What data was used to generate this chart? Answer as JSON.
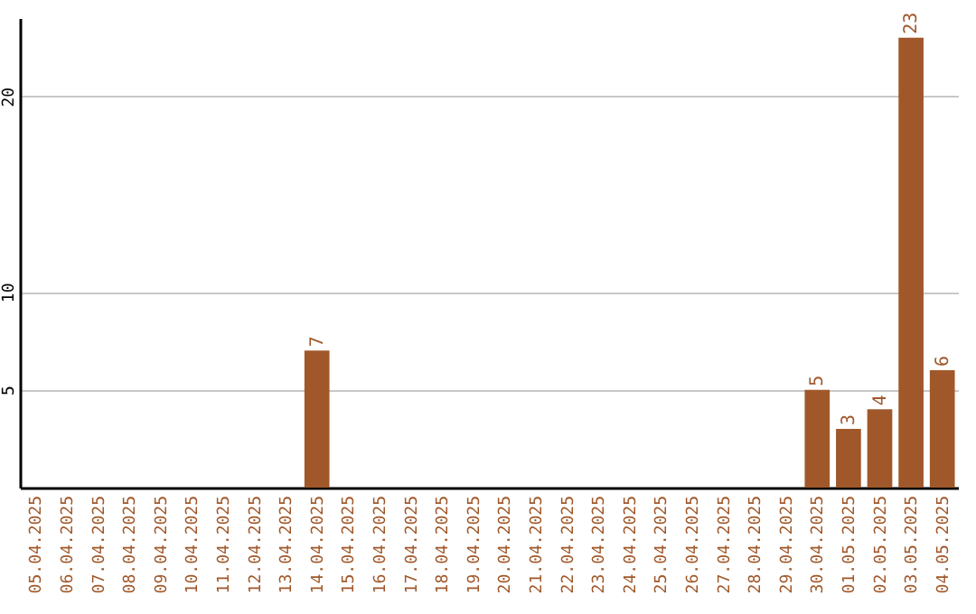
{
  "chart_data": {
    "type": "bar",
    "categories": [
      "05.04.2025",
      "06.04.2025",
      "07.04.2025",
      "08.04.2025",
      "09.04.2025",
      "10.04.2025",
      "11.04.2025",
      "12.04.2025",
      "13.04.2025",
      "14.04.2025",
      "15.04.2025",
      "16.04.2025",
      "17.04.2025",
      "18.04.2025",
      "19.04.2025",
      "20.04.2025",
      "21.04.2025",
      "22.04.2025",
      "23.04.2025",
      "24.04.2025",
      "25.04.2025",
      "26.04.2025",
      "27.04.2025",
      "28.04.2025",
      "29.04.2025",
      "30.04.2025",
      "01.05.2025",
      "02.05.2025",
      "03.05.2025",
      "04.05.2025"
    ],
    "values": [
      0,
      0,
      0,
      0,
      0,
      0,
      0,
      0,
      0,
      7,
      0,
      0,
      0,
      0,
      0,
      0,
      0,
      0,
      0,
      0,
      0,
      0,
      0,
      0,
      0,
      5,
      3,
      4,
      23,
      6
    ],
    "value_labels": [
      null,
      null,
      null,
      null,
      null,
      null,
      null,
      null,
      null,
      "7",
      null,
      null,
      null,
      null,
      null,
      null,
      null,
      null,
      null,
      null,
      null,
      null,
      null,
      null,
      null,
      "5",
      "3",
      "4",
      "23",
      "6"
    ],
    "color": "#a0582a",
    "ylim": [
      0,
      24
    ],
    "yticks": [
      5,
      10,
      20
    ],
    "grid": "y"
  }
}
